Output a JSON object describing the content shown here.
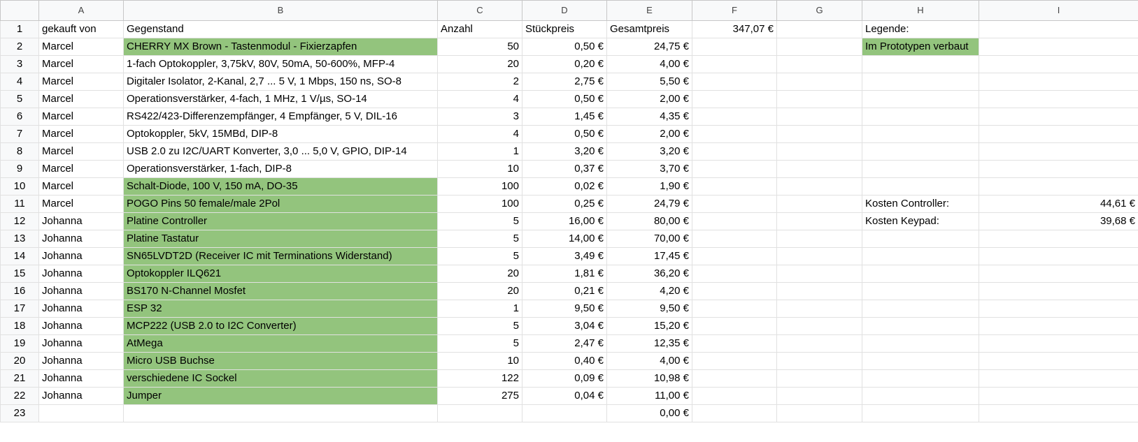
{
  "columns": [
    "A",
    "B",
    "C",
    "D",
    "E",
    "F",
    "G",
    "H",
    "I"
  ],
  "rows": [
    {
      "n": "1",
      "a": "gekauft von",
      "b": "Gegenstand",
      "c": "Anzahl",
      "d": "Stückpreis",
      "e": "Gesamtpreis",
      "f": "347,07 €",
      "g": "",
      "h": "Legende:",
      "i": ""
    },
    {
      "n": "2",
      "a": "Marcel",
      "b": "CHERRY MX Brown - Tastenmodul - Fixierzapfen",
      "c": "50",
      "d": "0,50 €",
      "e": "24,75 €",
      "f": "",
      "g": "",
      "h": "Im Prototypen verbaut",
      "i": ""
    },
    {
      "n": "3",
      "a": "Marcel",
      "b": "1-fach Optokoppler, 3,75kV, 80V, 50mA, 50-600%, MFP-4",
      "c": "20",
      "d": "0,20 €",
      "e": "4,00 €",
      "f": "",
      "g": "",
      "h": "",
      "i": ""
    },
    {
      "n": "4",
      "a": "Marcel",
      "b": "Digitaler Isolator, 2-Kanal, 2,7 ... 5 V, 1 Mbps, 150 ns, SO-8",
      "c": "2",
      "d": "2,75 €",
      "e": "5,50 €",
      "f": "",
      "g": "",
      "h": "",
      "i": ""
    },
    {
      "n": "5",
      "a": "Marcel",
      "b": "Operationsverstärker, 4-fach, 1 MHz, 1 V/µs, SO-14",
      "c": "4",
      "d": "0,50 €",
      "e": "2,00 €",
      "f": "",
      "g": "",
      "h": "",
      "i": ""
    },
    {
      "n": "6",
      "a": "Marcel",
      "b": "RS422/423-Differenzempfänger, 4 Empfänger, 5 V, DIL-16",
      "c": "3",
      "d": "1,45 €",
      "e": "4,35 €",
      "f": "",
      "g": "",
      "h": "",
      "i": ""
    },
    {
      "n": "7",
      "a": "Marcel",
      "b": "Optokoppler, 5kV, 15MBd, DIP-8",
      "c": "4",
      "d": "0,50 €",
      "e": "2,00 €",
      "f": "",
      "g": "",
      "h": "",
      "i": ""
    },
    {
      "n": "8",
      "a": "Marcel",
      "b": "USB 2.0 zu I2C/UART Konverter, 3,0 ... 5,0 V, GPIO, DIP-14",
      "c": "1",
      "d": "3,20 €",
      "e": "3,20 €",
      "f": "",
      "g": "",
      "h": "",
      "i": ""
    },
    {
      "n": "9",
      "a": "Marcel",
      "b": "Operationsverstärker, 1-fach, DIP-8",
      "c": "10",
      "d": "0,37 €",
      "e": "3,70 €",
      "f": "",
      "g": "",
      "h": "",
      "i": ""
    },
    {
      "n": "10",
      "a": "Marcel",
      "b": "Schalt-Diode, 100 V, 150 mA, DO-35",
      "c": "100",
      "d": "0,02 €",
      "e": "1,90 €",
      "f": "",
      "g": "",
      "h": "",
      "i": ""
    },
    {
      "n": "11",
      "a": "Marcel",
      "b": "POGO Pins 50 female/male 2Pol",
      "c": "100",
      "d": "0,25 €",
      "e": "24,79 €",
      "f": "",
      "g": "",
      "h": "Kosten Controller:",
      "i": "44,61 €"
    },
    {
      "n": "12",
      "a": "Johanna",
      "b": "Platine Controller",
      "c": "5",
      "d": "16,00 €",
      "e": "80,00 €",
      "f": "",
      "g": "",
      "h": "Kosten Keypad:",
      "i": "39,68 €"
    },
    {
      "n": "13",
      "a": "Johanna",
      "b": "Platine Tastatur",
      "c": "5",
      "d": "14,00 €",
      "e": "70,00 €",
      "f": "",
      "g": "",
      "h": "",
      "i": ""
    },
    {
      "n": "14",
      "a": "Johanna",
      "b": "SN65LVDT2D (Receiver IC mit Terminations Widerstand)",
      "c": "5",
      "d": "3,49 €",
      "e": "17,45 €",
      "f": "",
      "g": "",
      "h": "",
      "i": ""
    },
    {
      "n": "15",
      "a": "Johanna",
      "b": "Optokoppler ILQ621",
      "c": "20",
      "d": "1,81 €",
      "e": "36,20 €",
      "f": "",
      "g": "",
      "h": "",
      "i": ""
    },
    {
      "n": "16",
      "a": "Johanna",
      "b": "BS170 N-Channel Mosfet",
      "c": "20",
      "d": "0,21 €",
      "e": "4,20 €",
      "f": "",
      "g": "",
      "h": "",
      "i": ""
    },
    {
      "n": "17",
      "a": "Johanna",
      "b": "ESP 32",
      "c": "1",
      "d": "9,50 €",
      "e": "9,50 €",
      "f": "",
      "g": "",
      "h": "",
      "i": ""
    },
    {
      "n": "18",
      "a": "Johanna",
      "b": "MCP222 (USB 2.0 to I2C Converter)",
      "c": "5",
      "d": "3,04 €",
      "e": "15,20 €",
      "f": "",
      "g": "",
      "h": "",
      "i": ""
    },
    {
      "n": "19",
      "a": "Johanna",
      "b": "AtMega",
      "c": "5",
      "d": "2,47 €",
      "e": "12,35 €",
      "f": "",
      "g": "",
      "h": "",
      "i": ""
    },
    {
      "n": "20",
      "a": "Johanna",
      "b": "Micro USB Buchse",
      "c": "10",
      "d": "0,40 €",
      "e": "4,00 €",
      "f": "",
      "g": "",
      "h": "",
      "i": ""
    },
    {
      "n": "21",
      "a": "Johanna",
      "b": "verschiedene IC Sockel",
      "c": "122",
      "d": "0,09 €",
      "e": "10,98 €",
      "f": "",
      "g": "",
      "h": "",
      "i": ""
    },
    {
      "n": "22",
      "a": "Johanna",
      "b": "Jumper",
      "c": "275",
      "d": "0,04 €",
      "e": "11,00 €",
      "f": "",
      "g": "",
      "h": "",
      "i": ""
    },
    {
      "n": "23",
      "a": "",
      "b": "",
      "c": "",
      "d": "",
      "e": "0,00 €",
      "f": "",
      "g": "",
      "h": "",
      "i": ""
    }
  ],
  "colors": {
    "highlight_green": "#93c47d",
    "header_bg": "#f8f9fa",
    "grid": "#e1e1e1"
  }
}
